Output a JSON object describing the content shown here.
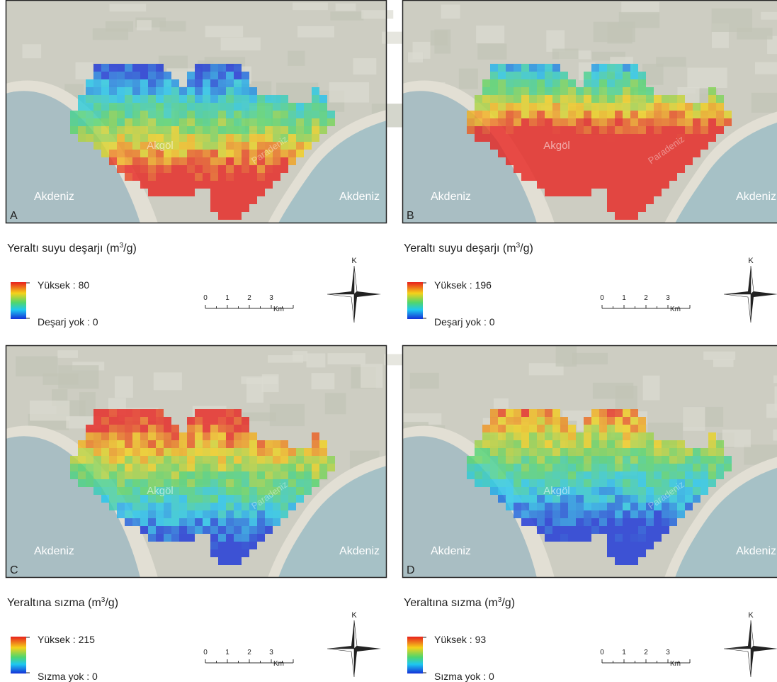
{
  "panels": [
    {
      "letter": "A",
      "sea_left": "Akdeniz",
      "sea_right": "Akdeniz",
      "lake": "Akgöl",
      "spit": "Paradeniz",
      "legend": {
        "title": "Yeraltı suyu deşarjı (m",
        "title_sup": "3",
        "title_end": "/g)",
        "high": "Yüksek : 80",
        "low": "Deşarj yok : 0"
      },
      "scale": {
        "ticks": [
          "0",
          "1",
          "2",
          "3"
        ],
        "unit": "Km"
      },
      "north": "K"
    },
    {
      "letter": "B",
      "sea_left": "Akdeniz",
      "sea_right": "Akdeniz",
      "lake": "Akgöl",
      "spit": "Paradeniz",
      "legend": {
        "title": "Yeraltı suyu deşarjı (m",
        "title_sup": "3",
        "title_end": "/g)",
        "high": "Yüksek : 196",
        "low": "Deşarj yok : 0"
      },
      "scale": {
        "ticks": [
          "0",
          "1",
          "2",
          "3"
        ],
        "unit": "Km"
      },
      "north": "K"
    },
    {
      "letter": "C",
      "sea_left": "Akdeniz",
      "sea_right": "Akdeniz",
      "lake": "Akgöl",
      "spit": "Paradeniz",
      "legend": {
        "title": "Yeraltına sızma (m",
        "title_sup": "3",
        "title_end": "/g)",
        "high": "Yüksek : 215",
        "low": "Sızma yok : 0"
      },
      "scale": {
        "ticks": [
          "0",
          "1",
          "2",
          "3"
        ],
        "unit": "Km"
      },
      "north": "K"
    },
    {
      "letter": "D",
      "sea_left": "Akdeniz",
      "sea_right": "Akdeniz",
      "lake": "Akgöl",
      "spit": "Paradeniz",
      "legend": {
        "title": "Yeraltına sızma (m",
        "title_sup": "3",
        "title_end": "/g)",
        "high": "Yüksek : 93",
        "low": "Sızma yok : 0"
      },
      "scale": {
        "ticks": [
          "0",
          "1",
          "2",
          "3"
        ],
        "unit": "Km"
      },
      "north": "K"
    }
  ]
}
